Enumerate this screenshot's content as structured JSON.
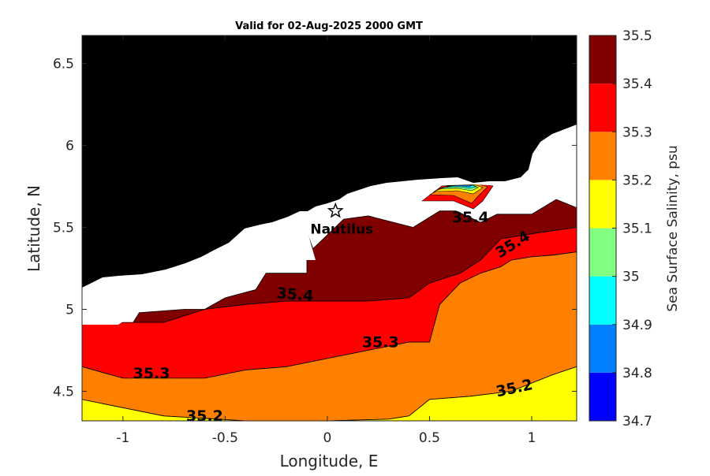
{
  "title": "Valid for 02-Aug-2025 2000 GMT",
  "x_axis": {
    "label": "Longitude, E",
    "range": [
      -1.2,
      1.22
    ],
    "ticks": [
      -1,
      -0.5,
      0,
      0.5,
      1
    ],
    "tick_labels": [
      "-1",
      "-0.5",
      "0",
      "0.5",
      "1"
    ]
  },
  "y_axis": {
    "label": "Latitude, N",
    "range": [
      4.32,
      6.67
    ],
    "ticks": [
      4.5,
      5,
      5.5,
      6,
      6.5
    ],
    "tick_labels": [
      "4.5",
      "5",
      "5.5",
      "6",
      "6.5"
    ]
  },
  "colorbar": {
    "label": "Sea Surface Salinity, psu",
    "levels": [
      34.7,
      34.8,
      34.9,
      35,
      35.1,
      35.2,
      35.3,
      35.4,
      35.5
    ],
    "level_labels": [
      "34.7",
      "34.8",
      "34.9",
      "35",
      "35.1",
      "35.2",
      "35.3",
      "35.4",
      "35.5"
    ],
    "colors": [
      "#0000ff",
      "#0080ff",
      "#00ffff",
      "#80ff80",
      "#ffff00",
      "#ff8000",
      "#ff0000",
      "#800000"
    ]
  },
  "colors": {
    "land": "#000000",
    "no_data": "#ffffff",
    "contour_line": "#000000"
  },
  "station": {
    "name": "Nautilus",
    "lon": 0.04,
    "lat": 5.6,
    "marker": "star-icon"
  },
  "contour_labels": [
    {
      "text": "35.4",
      "lon": -0.16,
      "lat": 5.06,
      "rotate": 5
    },
    {
      "text": "35.4",
      "lon": 0.7,
      "lat": 5.53,
      "rotate": 0
    },
    {
      "text": "35.4",
      "lon": 0.92,
      "lat": 5.37,
      "rotate": -32
    },
    {
      "text": "35.3",
      "lon": 0.26,
      "lat": 4.77,
      "rotate": 0
    },
    {
      "text": "35.3",
      "lon": -0.86,
      "lat": 4.58,
      "rotate": 0
    },
    {
      "text": "35.2",
      "lon": -0.6,
      "lat": 4.32,
      "rotate": 0
    },
    {
      "text": "35.2",
      "lon": 0.92,
      "lat": 4.49,
      "rotate": -12
    }
  ],
  "chart_data": {
    "type": "contour",
    "variable": "Sea Surface Salinity, psu",
    "valid_time": "02-Aug-2025 2000 GMT",
    "xlim": [
      -1.2,
      1.22
    ],
    "ylim": [
      4.32,
      6.67
    ],
    "levels": [
      34.7,
      34.8,
      34.9,
      35,
      35.1,
      35.2,
      35.3,
      35.4,
      35.5
    ],
    "regions": [
      {
        "band": "35.4-35.5",
        "label": "35.4",
        "polygon": [
          [
            -0.1,
            5.47
          ],
          [
            -0.07,
            5.37
          ],
          [
            0.08,
            5.55
          ],
          [
            0.2,
            5.57
          ],
          [
            0.42,
            5.5
          ],
          [
            0.55,
            5.6
          ],
          [
            0.63,
            5.6
          ],
          [
            0.75,
            5.53
          ],
          [
            0.83,
            5.58
          ],
          [
            1.0,
            5.58
          ],
          [
            1.12,
            5.67
          ],
          [
            1.22,
            5.62
          ],
          [
            1.22,
            5.5
          ],
          [
            1.05,
            5.47
          ],
          [
            0.85,
            5.43
          ],
          [
            0.75,
            5.3
          ],
          [
            0.65,
            5.22
          ],
          [
            0.5,
            5.16
          ],
          [
            0.4,
            5.07
          ],
          [
            0.2,
            5.05
          ],
          [
            0.0,
            5.05
          ],
          [
            -0.2,
            5.05
          ],
          [
            -0.4,
            5.03
          ],
          [
            -0.6,
            5.0
          ],
          [
            -0.8,
            4.92
          ],
          [
            -0.95,
            4.92
          ],
          [
            -0.92,
            4.98
          ],
          [
            -0.7,
            5.0
          ],
          [
            -0.6,
            5.0
          ],
          [
            -0.5,
            5.07
          ],
          [
            -0.35,
            5.12
          ],
          [
            -0.3,
            5.22
          ],
          [
            -0.1,
            5.22
          ],
          [
            -0.1,
            5.3
          ]
        ]
      },
      {
        "band": "35.3-35.4",
        "label": "35.3",
        "polygon": [
          [
            -1.2,
            4.92
          ],
          [
            -0.95,
            4.92
          ],
          [
            -0.8,
            4.92
          ],
          [
            -0.6,
            5.0
          ],
          [
            -0.4,
            5.03
          ],
          [
            -0.2,
            5.05
          ],
          [
            0.0,
            5.05
          ],
          [
            0.2,
            5.05
          ],
          [
            0.4,
            5.07
          ],
          [
            0.5,
            5.16
          ],
          [
            0.65,
            5.22
          ],
          [
            0.75,
            5.3
          ],
          [
            0.85,
            5.43
          ],
          [
            1.05,
            5.47
          ],
          [
            1.22,
            5.5
          ],
          [
            1.22,
            5.35
          ],
          [
            1.1,
            5.33
          ],
          [
            1.0,
            5.32
          ],
          [
            0.9,
            5.3
          ],
          [
            0.85,
            5.26
          ],
          [
            0.75,
            5.22
          ],
          [
            0.65,
            5.16
          ],
          [
            0.55,
            5.03
          ],
          [
            0.5,
            4.8
          ],
          [
            0.4,
            4.8
          ],
          [
            0.2,
            4.75
          ],
          [
            0.0,
            4.7
          ],
          [
            -0.2,
            4.65
          ],
          [
            -0.4,
            4.63
          ],
          [
            -0.6,
            4.58
          ],
          [
            -0.8,
            4.58
          ],
          [
            -1.0,
            4.58
          ],
          [
            -1.2,
            4.65
          ]
        ]
      },
      {
        "band": "35.2-35.3",
        "label": "35.2",
        "polygon": [
          [
            -1.2,
            4.65
          ],
          [
            -1.0,
            4.58
          ],
          [
            -0.8,
            4.58
          ],
          [
            -0.6,
            4.58
          ],
          [
            -0.4,
            4.63
          ],
          [
            -0.2,
            4.65
          ],
          [
            0.0,
            4.7
          ],
          [
            0.2,
            4.75
          ],
          [
            0.4,
            4.8
          ],
          [
            0.5,
            4.8
          ],
          [
            0.55,
            5.03
          ],
          [
            0.65,
            5.16
          ],
          [
            0.75,
            5.22
          ],
          [
            0.85,
            5.26
          ],
          [
            0.9,
            5.3
          ],
          [
            1.0,
            5.32
          ],
          [
            1.1,
            5.33
          ],
          [
            1.22,
            5.35
          ],
          [
            1.22,
            4.65
          ],
          [
            1.1,
            4.6
          ],
          [
            0.9,
            4.5
          ],
          [
            0.7,
            4.47
          ],
          [
            0.5,
            4.45
          ],
          [
            0.4,
            4.35
          ],
          [
            0.3,
            4.33
          ],
          [
            0.0,
            4.32
          ],
          [
            -0.4,
            4.32
          ],
          [
            -0.8,
            4.35
          ],
          [
            -1.2,
            4.45
          ]
        ]
      },
      {
        "band": "35.1-35.2",
        "label": "35.2",
        "polygon": [
          [
            -1.2,
            4.45
          ],
          [
            -0.8,
            4.35
          ],
          [
            -0.4,
            4.32
          ],
          [
            0.0,
            4.32
          ],
          [
            0.3,
            4.33
          ],
          [
            0.4,
            4.35
          ],
          [
            0.5,
            4.45
          ],
          [
            0.7,
            4.47
          ],
          [
            0.9,
            4.5
          ],
          [
            1.1,
            4.6
          ],
          [
            1.22,
            4.65
          ],
          [
            1.22,
            4.32
          ],
          [
            -1.2,
            4.32
          ]
        ]
      }
    ]
  }
}
